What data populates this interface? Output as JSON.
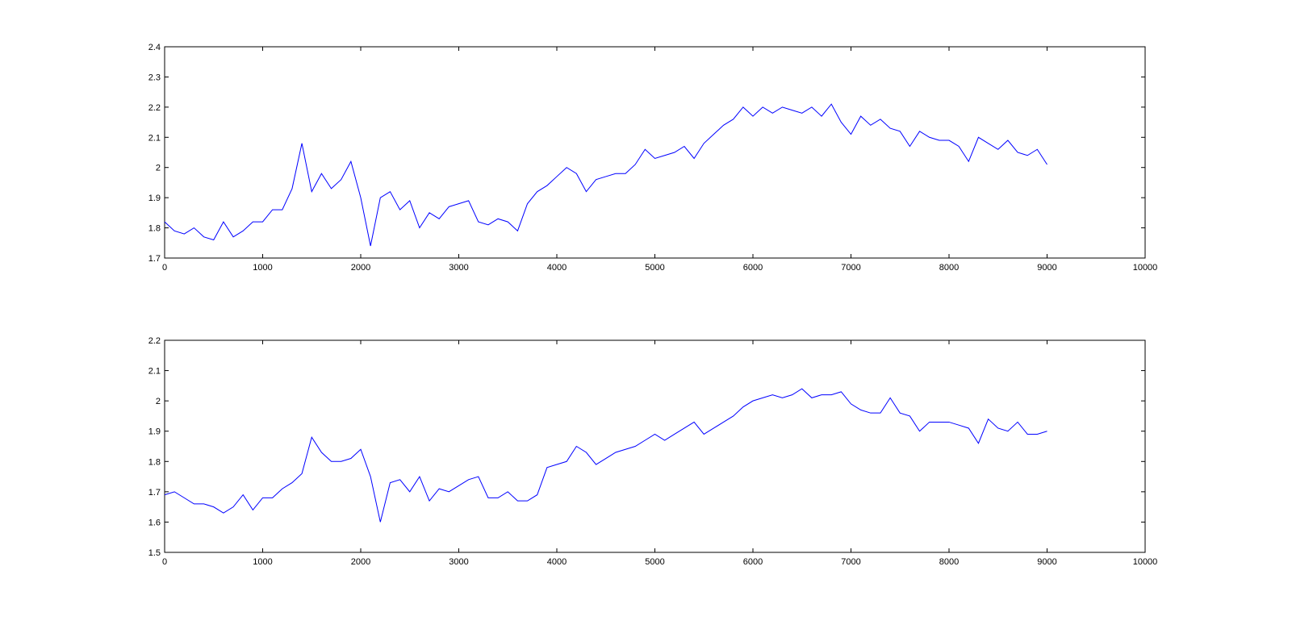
{
  "chart_data": [
    {
      "type": "line",
      "color": "#0000ff",
      "x": [
        0,
        100,
        200,
        300,
        400,
        500,
        600,
        700,
        800,
        900,
        1000,
        1100,
        1200,
        1300,
        1400,
        1500,
        1600,
        1700,
        1800,
        1900,
        2000,
        2100,
        2200,
        2300,
        2400,
        2500,
        2600,
        2700,
        2800,
        2900,
        3000,
        3100,
        3200,
        3300,
        3400,
        3500,
        3600,
        3700,
        3800,
        3900,
        4000,
        4100,
        4200,
        4300,
        4400,
        4500,
        4600,
        4700,
        4800,
        4900,
        5000,
        5100,
        5200,
        5300,
        5400,
        5500,
        5600,
        5700,
        5800,
        5900,
        6000,
        6100,
        6200,
        6300,
        6400,
        6500,
        6600,
        6700,
        6800,
        6900,
        7000,
        7100,
        7200,
        7300,
        7400,
        7500,
        7600,
        7700,
        7800,
        7900,
        8000,
        8100,
        8200,
        8300,
        8400,
        8500,
        8600,
        8700,
        8800,
        8900,
        9000
      ],
      "values": [
        1.82,
        1.79,
        1.78,
        1.8,
        1.77,
        1.76,
        1.82,
        1.77,
        1.79,
        1.82,
        1.82,
        1.86,
        1.86,
        1.93,
        2.08,
        1.92,
        1.98,
        1.93,
        1.96,
        2.02,
        1.9,
        1.74,
        1.9,
        1.92,
        1.86,
        1.89,
        1.8,
        1.85,
        1.83,
        1.87,
        1.88,
        1.89,
        1.82,
        1.81,
        1.83,
        1.82,
        1.79,
        1.88,
        1.92,
        1.94,
        1.97,
        2.0,
        1.98,
        1.92,
        1.96,
        1.97,
        1.98,
        1.98,
        2.01,
        2.06,
        2.03,
        2.04,
        2.05,
        2.07,
        2.03,
        2.08,
        2.11,
        2.14,
        2.16,
        2.2,
        2.17,
        2.2,
        2.18,
        2.2,
        2.19,
        2.18,
        2.2,
        2.17,
        2.21,
        2.15,
        2.11,
        2.17,
        2.14,
        2.16,
        2.13,
        2.12,
        2.07,
        2.12,
        2.1,
        2.09,
        2.09,
        2.07,
        2.02,
        2.1,
        2.08,
        2.06,
        2.09,
        2.05,
        2.04,
        2.06,
        2.01
      ],
      "xlim": [
        0,
        10000
      ],
      "xticks": [
        0,
        1000,
        2000,
        3000,
        4000,
        5000,
        6000,
        7000,
        8000,
        9000,
        10000
      ],
      "ylim": [
        1.7,
        2.4
      ],
      "yticks": [
        1.7,
        1.8,
        1.9,
        2,
        2.1,
        2.2,
        2.3,
        2.4
      ],
      "grid": false
    },
    {
      "type": "line",
      "color": "#0000ff",
      "x": [
        0,
        100,
        200,
        300,
        400,
        500,
        600,
        700,
        800,
        900,
        1000,
        1100,
        1200,
        1300,
        1400,
        1500,
        1600,
        1700,
        1800,
        1900,
        2000,
        2100,
        2200,
        2300,
        2400,
        2500,
        2600,
        2700,
        2800,
        2900,
        3000,
        3100,
        3200,
        3300,
        3400,
        3500,
        3600,
        3700,
        3800,
        3900,
        4000,
        4100,
        4200,
        4300,
        4400,
        4500,
        4600,
        4700,
        4800,
        4900,
        5000,
        5100,
        5200,
        5300,
        5400,
        5500,
        5600,
        5700,
        5800,
        5900,
        6000,
        6100,
        6200,
        6300,
        6400,
        6500,
        6600,
        6700,
        6800,
        6900,
        7000,
        7100,
        7200,
        7300,
        7400,
        7500,
        7600,
        7700,
        7800,
        7900,
        8000,
        8100,
        8200,
        8300,
        8400,
        8500,
        8600,
        8700,
        8800,
        8900,
        9000
      ],
      "values": [
        1.69,
        1.7,
        1.68,
        1.66,
        1.66,
        1.65,
        1.63,
        1.65,
        1.69,
        1.64,
        1.68,
        1.68,
        1.71,
        1.73,
        1.76,
        1.88,
        1.83,
        1.8,
        1.8,
        1.81,
        1.84,
        1.75,
        1.6,
        1.73,
        1.74,
        1.7,
        1.75,
        1.67,
        1.71,
        1.7,
        1.72,
        1.74,
        1.75,
        1.68,
        1.68,
        1.7,
        1.67,
        1.67,
        1.69,
        1.78,
        1.79,
        1.8,
        1.85,
        1.83,
        1.79,
        1.81,
        1.83,
        1.84,
        1.85,
        1.87,
        1.89,
        1.87,
        1.89,
        1.91,
        1.93,
        1.89,
        1.91,
        1.93,
        1.95,
        1.98,
        2.0,
        2.01,
        2.02,
        2.01,
        2.02,
        2.04,
        2.01,
        2.02,
        2.02,
        2.03,
        1.99,
        1.97,
        1.96,
        1.96,
        2.01,
        1.96,
        1.95,
        1.9,
        1.93,
        1.93,
        1.93,
        1.92,
        1.91,
        1.86,
        1.94,
        1.91,
        1.9,
        1.93,
        1.89,
        1.89,
        1.9
      ],
      "xlim": [
        0,
        10000
      ],
      "xticks": [
        0,
        1000,
        2000,
        3000,
        4000,
        5000,
        6000,
        7000,
        8000,
        9000,
        10000
      ],
      "ylim": [
        1.5,
        2.2
      ],
      "yticks": [
        1.5,
        1.6,
        1.7,
        1.8,
        1.9,
        2,
        2.1,
        2.2
      ],
      "grid": false
    }
  ]
}
